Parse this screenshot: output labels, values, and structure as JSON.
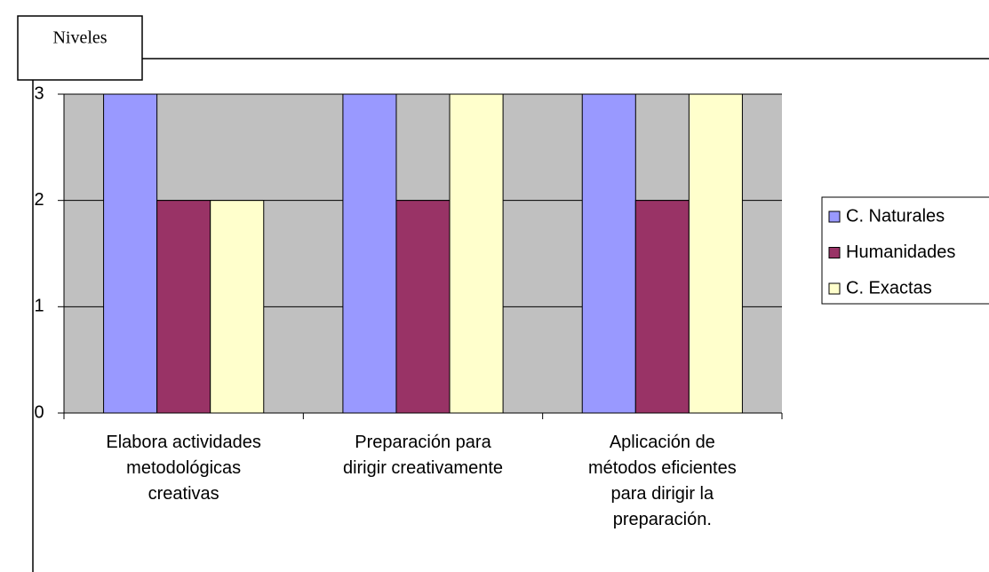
{
  "chart_data": {
    "type": "bar",
    "title": "Niveles",
    "categories": [
      "Elabora actividades\nmetodológicas\ncreativas",
      "Preparación para\ndirigir creativamente",
      "Aplicación de\nmétodos eficientes\npara dirigir la\npreparación."
    ],
    "series": [
      {
        "name": "C. Naturales",
        "color": "#9999ff",
        "values": [
          3,
          3,
          3
        ]
      },
      {
        "name": "Humanidades",
        "color": "#993366",
        "values": [
          2,
          2,
          2
        ]
      },
      {
        "name": "C. Exactas",
        "color": "#ffffcc",
        "values": [
          2,
          3,
          3
        ]
      }
    ],
    "ylim": [
      0,
      3
    ],
    "yticks": [
      0,
      1,
      2,
      3
    ],
    "grid": true,
    "legend": "right"
  }
}
